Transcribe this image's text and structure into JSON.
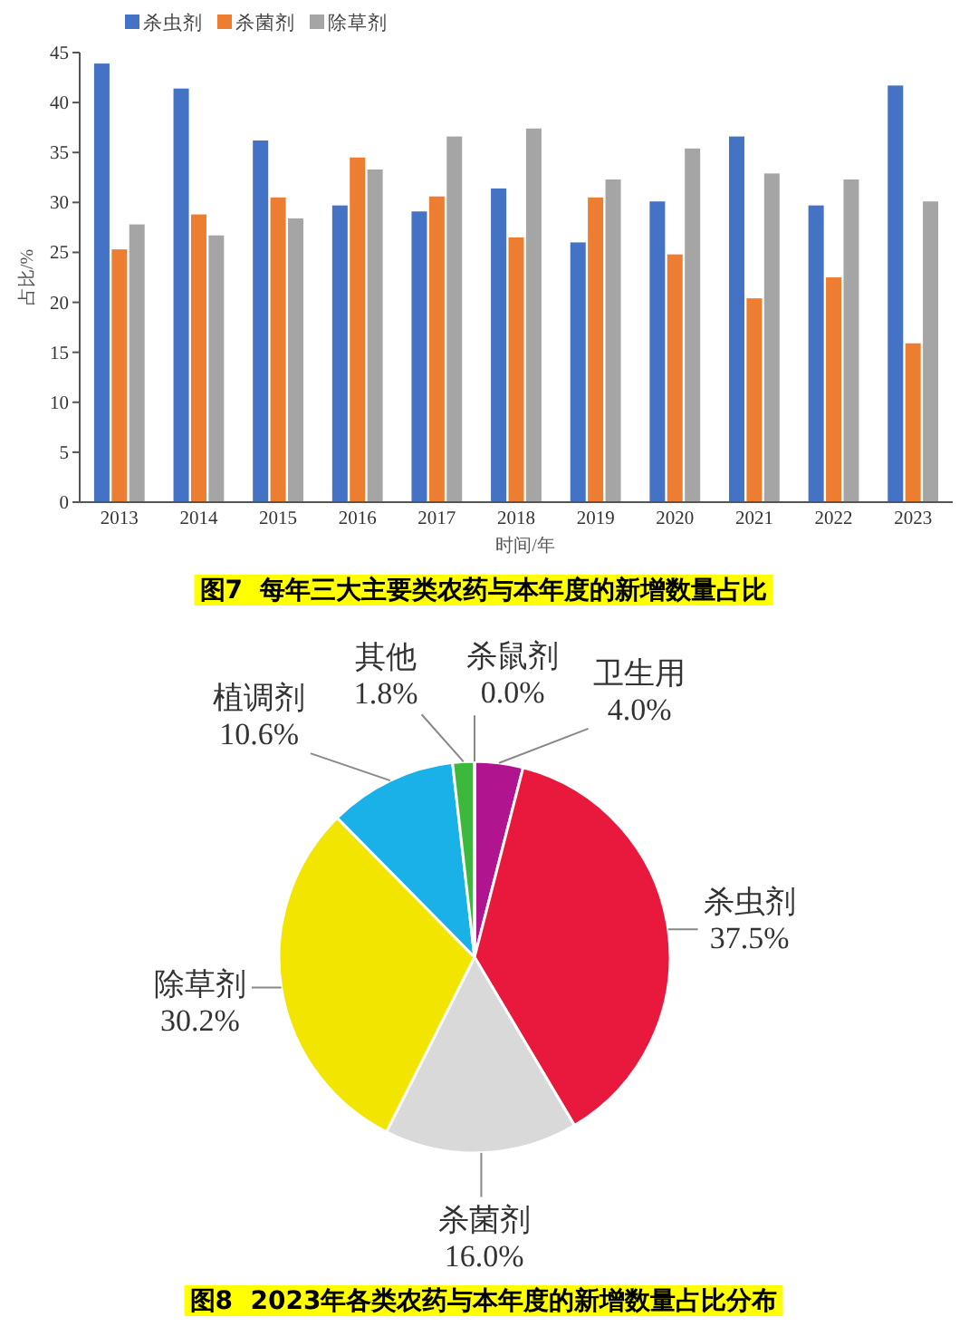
{
  "chart_data": [
    {
      "type": "bar",
      "title": "图7  每年三大主要类农药与本年度的新增数量占比",
      "xlabel": "时间/年",
      "ylabel": "占比/%",
      "categories": [
        "2013",
        "2014",
        "2015",
        "2016",
        "2017",
        "2018",
        "2019",
        "2020",
        "2021",
        "2022",
        "2023"
      ],
      "series": [
        {
          "name": "杀虫剂",
          "color": "#4472c4",
          "values": [
            43.9,
            41.4,
            36.2,
            29.7,
            29.1,
            31.4,
            26.0,
            30.1,
            36.6,
            29.7,
            41.7
          ]
        },
        {
          "name": "杀菌剂",
          "color": "#ed7d31",
          "values": [
            25.3,
            28.8,
            30.5,
            34.5,
            30.6,
            26.5,
            30.5,
            24.8,
            20.4,
            22.5,
            15.9
          ]
        },
        {
          "name": "除草剂",
          "color": "#a5a5a5",
          "values": [
            27.8,
            26.7,
            28.4,
            33.3,
            36.6,
            37.4,
            32.3,
            35.4,
            32.9,
            32.3,
            30.1
          ]
        }
      ],
      "ylim": [
        0,
        45
      ],
      "yticks": [
        0,
        5,
        10,
        15,
        20,
        25,
        30,
        35,
        40,
        45
      ],
      "legend": "top",
      "grid": false
    },
    {
      "type": "pie",
      "title": "图8  2023年各类农药与本年度的新增数量占比分布",
      "categories": [
        "卫生用",
        "杀虫剂",
        "杀菌剂",
        "除草剂",
        "植调剂",
        "其他",
        "杀鼠剂"
      ],
      "values": [
        4.0,
        37.5,
        16.0,
        30.2,
        10.6,
        1.8,
        0.0
      ],
      "colors": [
        "#b0158f",
        "#e8193c",
        "#d9d9d9",
        "#f2e600",
        "#1ab0e8",
        "#3cb83c",
        "#ffffff"
      ],
      "value_labels": [
        "4.0%",
        "37.5%",
        "16.0%",
        "30.2%",
        "10.6%",
        "1.8%",
        "0.0%"
      ]
    }
  ]
}
